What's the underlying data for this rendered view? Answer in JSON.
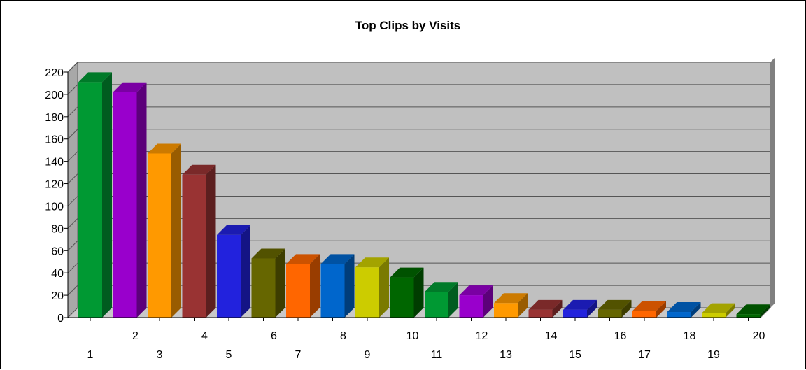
{
  "chart_data": {
    "type": "bar",
    "title": "Top Clips by Visits",
    "xlabel": "",
    "ylabel": "",
    "categories": [
      "1",
      "2",
      "3",
      "4",
      "5",
      "6",
      "7",
      "8",
      "9",
      "10",
      "11",
      "12",
      "13",
      "14",
      "15",
      "16",
      "17",
      "18",
      "19",
      "20"
    ],
    "values": [
      211,
      202,
      147,
      128,
      74,
      53,
      48,
      48,
      45,
      36,
      23,
      20,
      13,
      7,
      7,
      7,
      6,
      5,
      4,
      3
    ],
    "yticks": [
      0,
      20,
      40,
      60,
      80,
      100,
      120,
      140,
      160,
      180,
      200,
      220
    ],
    "ylim": [
      0,
      220
    ],
    "grid": true,
    "legend": "none",
    "style": "3d-bars",
    "colors": [
      "#009933",
      "#9900cc",
      "#ff9900",
      "#993333",
      "#2222dd",
      "#666600",
      "#ff6600",
      "#0066cc",
      "#cccc00",
      "#006600",
      "#009933",
      "#9900cc",
      "#ff9900",
      "#993333",
      "#2222dd",
      "#666600",
      "#ff6600",
      "#0066cc",
      "#cccc00",
      "#006600"
    ],
    "plot_background": "#c0c0c0",
    "grid_color": "#555555"
  }
}
